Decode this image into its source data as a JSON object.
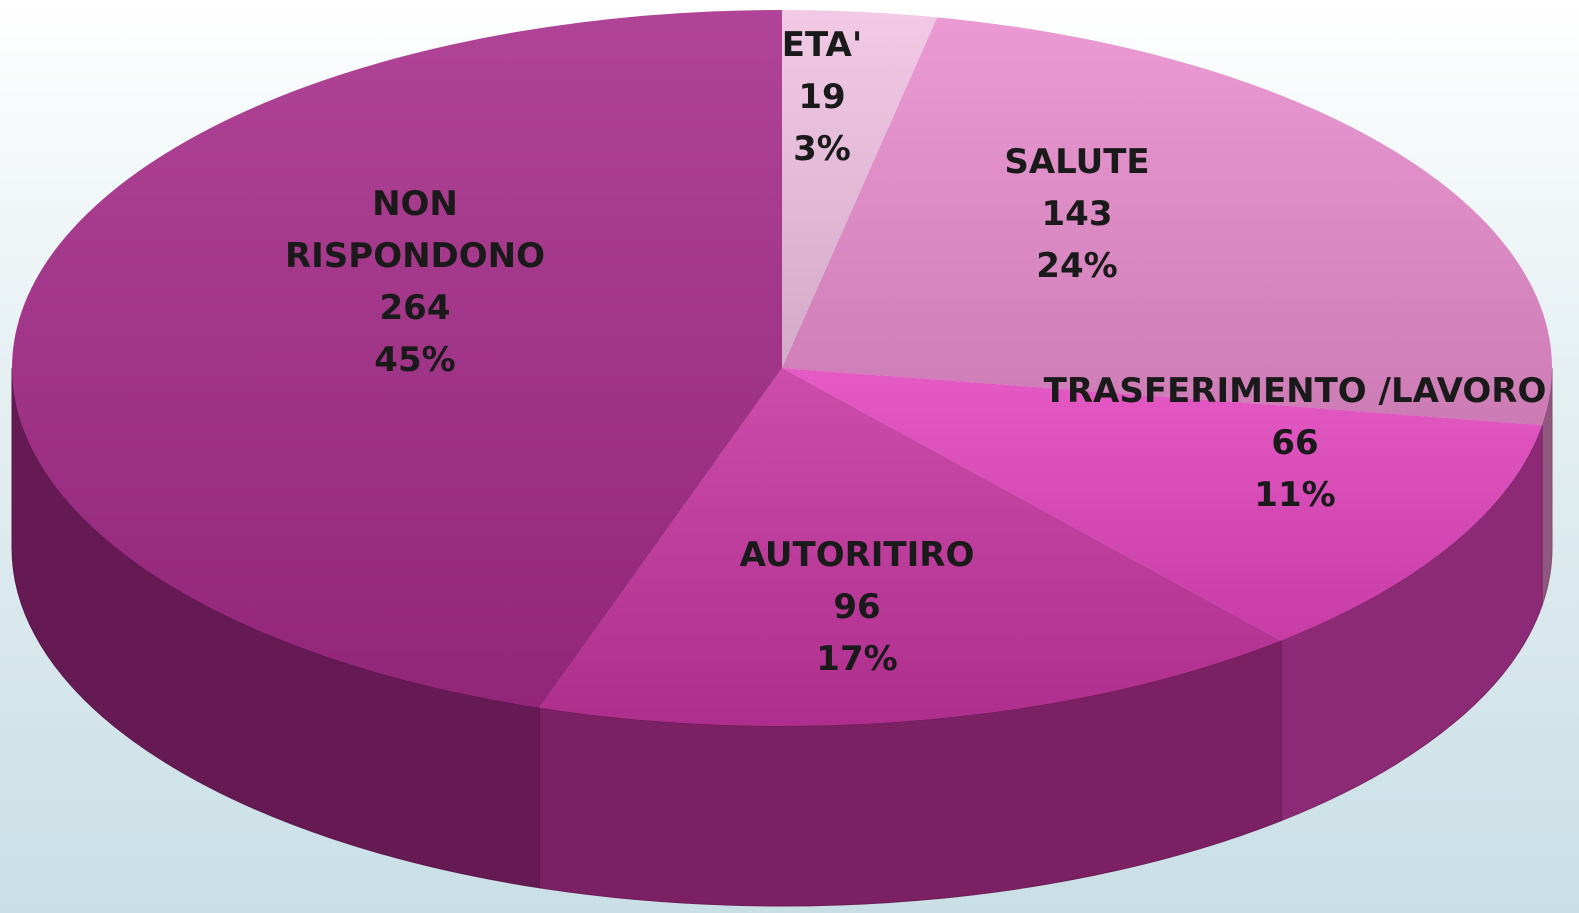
{
  "chart_data": {
    "type": "pie",
    "categories": [
      "ETA'",
      "SALUTE",
      "TRASFERIMENTO /LAVORO",
      "AUTORITIRO",
      "NON RISPONDONO"
    ],
    "values": [
      19,
      143,
      66,
      96,
      264
    ],
    "percent_labels": [
      "3%",
      "24%",
      "11%",
      "17%",
      "45%"
    ],
    "colors": [
      "#f0c2e2",
      "#e88ccd",
      "#e244bd",
      "#c634a0",
      "#a52a88"
    ]
  }
}
